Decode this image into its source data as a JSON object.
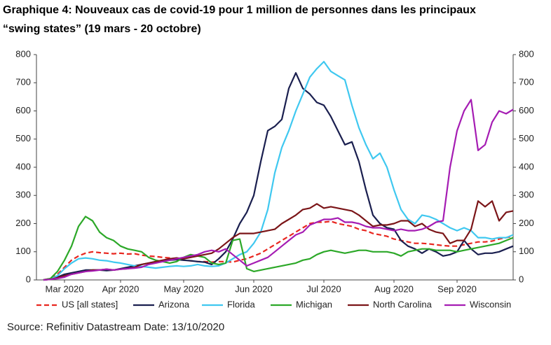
{
  "chart_data": {
    "type": "line",
    "title": [
      "Graphique 4: Nouveaux cas de covid-19 pour 1 million de personnes dans les principaux",
      "“swing states” (19 mars - 20 octobre)"
    ],
    "source": "Source: Refinitiv Datastream Date: 13/10/2020",
    "categories": [
      null,
      null,
      null,
      null,
      "Mar 2020",
      null,
      null,
      null,
      null,
      null,
      null,
      null,
      "Apr 2020",
      null,
      null,
      null,
      null,
      null,
      null,
      null,
      null,
      "May 2020",
      null,
      null,
      null,
      null,
      null,
      null,
      null,
      null,
      null,
      "Jun 2020",
      null,
      null,
      null,
      null,
      null,
      null,
      null,
      null,
      null,
      "Jul 2020",
      null,
      null,
      null,
      null,
      null,
      null,
      null,
      null,
      null,
      "Aug 2020",
      null,
      null,
      null,
      null,
      null,
      null,
      null,
      null,
      "Sep 2020",
      null,
      null,
      null,
      null,
      null,
      null,
      null,
      null
    ],
    "ylim": [
      0,
      800
    ],
    "yticks": [
      0,
      100,
      200,
      300,
      400,
      500,
      600,
      700,
      800
    ],
    "y2lim": [
      0,
      800
    ],
    "y2ticks": [
      0,
      100,
      200,
      300,
      400,
      500,
      600,
      700,
      800
    ],
    "grid": false,
    "legend": "bottom",
    "series": [
      {
        "name": "US [all states]",
        "color": "#e8261f",
        "style": "dashed",
        "values": [
          null,
          0,
          5,
          20,
          45,
          70,
          85,
          95,
          100,
          97,
          95,
          93,
          95,
          92,
          93,
          88,
          85,
          83,
          80,
          78,
          75,
          70,
          68,
          65,
          65,
          63,
          65,
          65,
          63,
          70,
          75,
          85,
          95,
          110,
          125,
          140,
          155,
          170,
          185,
          200,
          205,
          205,
          208,
          200,
          195,
          190,
          180,
          175,
          165,
          160,
          155,
          145,
          140,
          135,
          130,
          130,
          128,
          125,
          122,
          120,
          120,
          125,
          130,
          135,
          135,
          138,
          145,
          150,
          155
        ]
      },
      {
        "name": "Arizona",
        "color": "#1a1f4f",
        "style": "solid",
        "values": [
          null,
          0,
          3,
          10,
          20,
          25,
          30,
          35,
          35,
          35,
          33,
          35,
          40,
          45,
          50,
          55,
          60,
          65,
          68,
          70,
          72,
          70,
          68,
          65,
          63,
          55,
          75,
          100,
          145,
          200,
          240,
          300,
          420,
          530,
          545,
          570,
          680,
          735,
          680,
          660,
          630,
          620,
          580,
          530,
          480,
          490,
          420,
          320,
          230,
          200,
          185,
          180,
          140,
          120,
          110,
          95,
          110,
          100,
          85,
          90,
          100,
          140,
          110,
          90,
          95,
          95,
          100,
          110,
          120
        ]
      },
      {
        "name": "Florida",
        "color": "#3fc8f0",
        "style": "solid",
        "values": [
          null,
          0,
          3,
          15,
          40,
          60,
          75,
          78,
          75,
          70,
          68,
          63,
          60,
          55,
          50,
          48,
          45,
          42,
          45,
          48,
          50,
          48,
          50,
          55,
          50,
          48,
          50,
          60,
          75,
          90,
          100,
          130,
          170,
          250,
          380,
          470,
          530,
          600,
          660,
          720,
          750,
          775,
          740,
          725,
          710,
          620,
          540,
          480,
          430,
          450,
          400,
          320,
          250,
          215,
          200,
          230,
          225,
          215,
          200,
          185,
          175,
          185,
          175,
          150,
          150,
          145,
          150,
          150,
          160
        ]
      },
      {
        "name": "Michigan",
        "color": "#2ca828",
        "style": "solid",
        "values": [
          null,
          0,
          5,
          30,
          70,
          120,
          190,
          225,
          210,
          170,
          150,
          140,
          120,
          110,
          105,
          100,
          80,
          70,
          65,
          60,
          65,
          80,
          90,
          85,
          80,
          60,
          55,
          60,
          140,
          145,
          40,
          30,
          35,
          40,
          45,
          50,
          55,
          60,
          70,
          75,
          90,
          100,
          105,
          100,
          95,
          100,
          105,
          105,
          100,
          100,
          100,
          95,
          85,
          100,
          105,
          110,
          110,
          105,
          105,
          105,
          100,
          105,
          110,
          115,
          120,
          125,
          130,
          140,
          150
        ]
      },
      {
        "name": "North Carolina",
        "color": "#7b1518",
        "style": "solid",
        "values": [
          null,
          0,
          2,
          8,
          15,
          20,
          25,
          30,
          35,
          35,
          38,
          35,
          38,
          40,
          45,
          55,
          60,
          65,
          70,
          75,
          78,
          75,
          80,
          85,
          90,
          95,
          110,
          130,
          150,
          165,
          165,
          165,
          170,
          175,
          180,
          200,
          215,
          230,
          250,
          255,
          270,
          255,
          260,
          255,
          250,
          245,
          230,
          210,
          190,
          195,
          195,
          200,
          210,
          210,
          190,
          200,
          180,
          170,
          165,
          130,
          140,
          140,
          180,
          280,
          260,
          280,
          210,
          240,
          245
        ]
      },
      {
        "name": "Wisconsin",
        "color": "#a51cb3",
        "style": "solid",
        "values": [
          null,
          0,
          2,
          5,
          10,
          20,
          25,
          30,
          32,
          35,
          38,
          35,
          38,
          40,
          42,
          45,
          55,
          60,
          65,
          70,
          75,
          80,
          85,
          90,
          100,
          105,
          100,
          110,
          90,
          70,
          50,
          60,
          70,
          80,
          100,
          120,
          140,
          160,
          170,
          195,
          205,
          215,
          215,
          220,
          205,
          205,
          200,
          190,
          185,
          185,
          180,
          175,
          180,
          175,
          175,
          180,
          190,
          205,
          210,
          400,
          530,
          600,
          640,
          460,
          480,
          560,
          600,
          590,
          605
        ]
      }
    ]
  }
}
